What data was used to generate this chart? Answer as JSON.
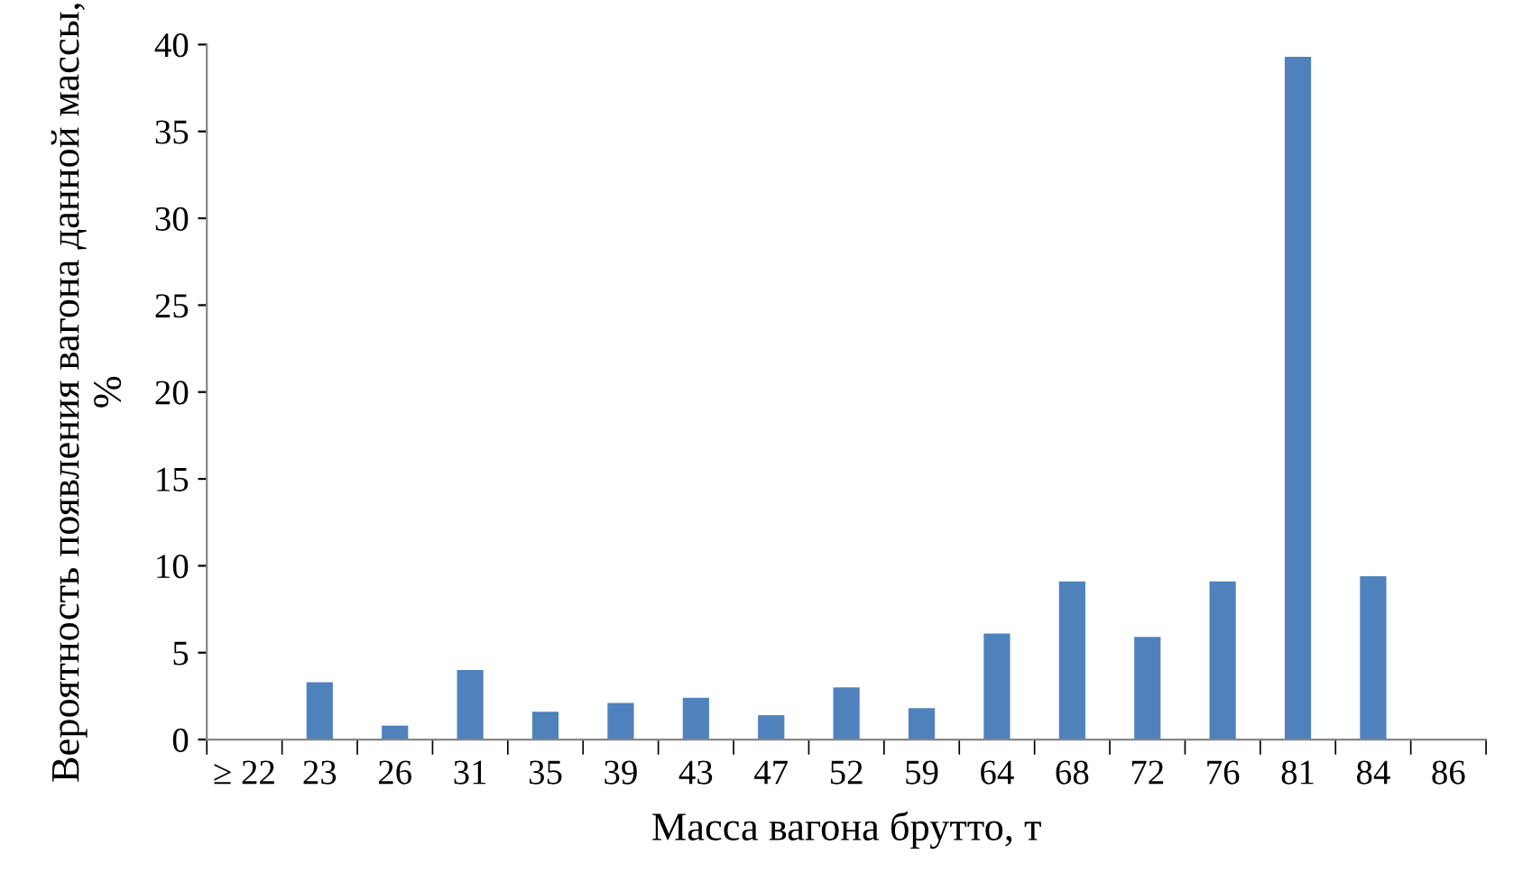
{
  "chart_data": {
    "type": "bar",
    "xlabel": "Масса вагона брутто, т",
    "ylabel": "Вероятность появления вагона данной массы, %",
    "categories": [
      "≥ 22",
      "23",
      "26",
      "31",
      "35",
      "39",
      "43",
      "47",
      "52",
      "59",
      "64",
      "68",
      "72",
      "76",
      "81",
      "84",
      "86"
    ],
    "values": [
      0,
      3.3,
      0.8,
      4.0,
      1.6,
      2.1,
      2.4,
      1.4,
      3.0,
      1.8,
      6.1,
      9.1,
      5.9,
      9.1,
      39.3,
      9.4,
      0
    ],
    "color": "#4f81bd",
    "ylim": [
      0,
      40
    ],
    "yticks": [
      0,
      5,
      10,
      15,
      20,
      25,
      30,
      35,
      40
    ],
    "grid": false
  }
}
